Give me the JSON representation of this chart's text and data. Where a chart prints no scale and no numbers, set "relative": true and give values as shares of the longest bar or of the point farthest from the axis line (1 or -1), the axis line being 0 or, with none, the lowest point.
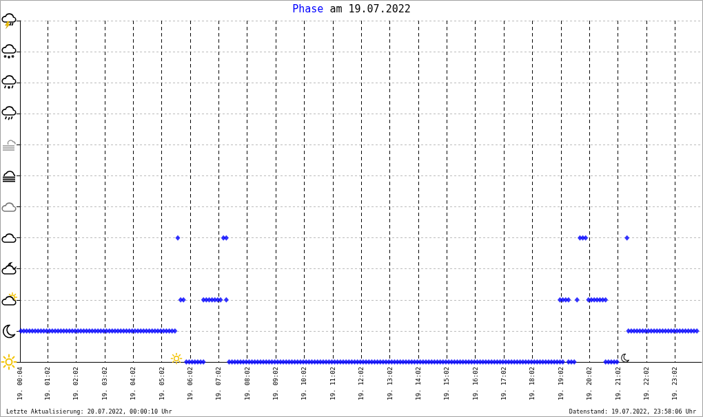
{
  "chart_data": {
    "type": "scatter",
    "title": "Phase am 19.07.2022",
    "color": "#0000ff",
    "marker": "diamond",
    "grid": true,
    "tick_labels": "x",
    "relative": true,
    "x": [
      "2022-07-19T00:06",
      "2022-07-19T00:12",
      "2022-07-19T00:18",
      "2022-07-19T00:24",
      "2022-07-19T00:30",
      "2022-07-19T00:36",
      "2022-07-19T00:42",
      "2022-07-19T00:48",
      "2022-07-19T00:54",
      "2022-07-19T01:00",
      "2022-07-19T01:06",
      "2022-07-19T01:12",
      "2022-07-19T01:18",
      "2022-07-19T01:24",
      "2022-07-19T01:30",
      "2022-07-19T01:36",
      "2022-07-19T01:42",
      "2022-07-19T01:48",
      "2022-07-19T01:54",
      "2022-07-19T02:00",
      "2022-07-19T02:06",
      "2022-07-19T02:12",
      "2022-07-19T02:18",
      "2022-07-19T02:24",
      "2022-07-19T02:30",
      "2022-07-19T02:36",
      "2022-07-19T02:42",
      "2022-07-19T02:48",
      "2022-07-19T02:54",
      "2022-07-19T03:00",
      "2022-07-19T03:06",
      "2022-07-19T03:12",
      "2022-07-19T03:18",
      "2022-07-19T03:24",
      "2022-07-19T03:30",
      "2022-07-19T03:36",
      "2022-07-19T03:42",
      "2022-07-19T03:48",
      "2022-07-19T03:54",
      "2022-07-19T04:00",
      "2022-07-19T04:06",
      "2022-07-19T04:12",
      "2022-07-19T04:18",
      "2022-07-19T04:24",
      "2022-07-19T04:30",
      "2022-07-19T04:36",
      "2022-07-19T04:42",
      "2022-07-19T04:48",
      "2022-07-19T04:54",
      "2022-07-19T05:00",
      "2022-07-19T05:06",
      "2022-07-19T05:12",
      "2022-07-19T05:18",
      "2022-07-19T05:24",
      "2022-07-19T05:30",
      "2022-07-19T05:36",
      "2022-07-19T05:42",
      "2022-07-19T05:48",
      "2022-07-19T05:54",
      "2022-07-19T06:00",
      "2022-07-19T06:06",
      "2022-07-19T06:12",
      "2022-07-19T06:18",
      "2022-07-19T06:24",
      "2022-07-19T06:30",
      "2022-07-19T06:30",
      "2022-07-19T06:36",
      "2022-07-19T06:42",
      "2022-07-19T06:48",
      "2022-07-19T06:54",
      "2022-07-19T07:00",
      "2022-07-19T07:06",
      "2022-07-19T07:18",
      "2022-07-19T07:12",
      "2022-07-19T07:18",
      "2022-07-19T07:24",
      "2022-07-19T07:30",
      "2022-07-19T07:36",
      "2022-07-19T07:42",
      "2022-07-19T07:48",
      "2022-07-19T07:54",
      "2022-07-19T08:00",
      "2022-07-19T08:06",
      "2022-07-19T08:12",
      "2022-07-19T08:18",
      "2022-07-19T08:24",
      "2022-07-19T08:30",
      "2022-07-19T08:36",
      "2022-07-19T08:42",
      "2022-07-19T08:48",
      "2022-07-19T08:54",
      "2022-07-19T09:00",
      "2022-07-19T09:06",
      "2022-07-19T09:12",
      "2022-07-19T09:18",
      "2022-07-19T09:24",
      "2022-07-19T09:30",
      "2022-07-19T09:36",
      "2022-07-19T09:42",
      "2022-07-19T09:48",
      "2022-07-19T09:54",
      "2022-07-19T10:00",
      "2022-07-19T10:06",
      "2022-07-19T10:12",
      "2022-07-19T10:18",
      "2022-07-19T10:24",
      "2022-07-19T10:30",
      "2022-07-19T10:36",
      "2022-07-19T10:42",
      "2022-07-19T10:48",
      "2022-07-19T10:54",
      "2022-07-19T11:00",
      "2022-07-19T11:06",
      "2022-07-19T11:12",
      "2022-07-19T11:18",
      "2022-07-19T11:24",
      "2022-07-19T11:30",
      "2022-07-19T11:36",
      "2022-07-19T11:42",
      "2022-07-19T11:48",
      "2022-07-19T11:54",
      "2022-07-19T12:00",
      "2022-07-19T12:06",
      "2022-07-19T12:12",
      "2022-07-19T12:18",
      "2022-07-19T12:24",
      "2022-07-19T12:30",
      "2022-07-19T12:36",
      "2022-07-19T12:42",
      "2022-07-19T12:48",
      "2022-07-19T12:54",
      "2022-07-19T13:00",
      "2022-07-19T13:06",
      "2022-07-19T13:12",
      "2022-07-19T13:18",
      "2022-07-19T13:24",
      "2022-07-19T13:30",
      "2022-07-19T13:36",
      "2022-07-19T13:42",
      "2022-07-19T13:48",
      "2022-07-19T13:54",
      "2022-07-19T14:00",
      "2022-07-19T14:06",
      "2022-07-19T14:12",
      "2022-07-19T14:18",
      "2022-07-19T14:24",
      "2022-07-19T14:30",
      "2022-07-19T14:36",
      "2022-07-19T14:42",
      "2022-07-19T14:48",
      "2022-07-19T14:54",
      "2022-07-19T15:00",
      "2022-07-19T15:06",
      "2022-07-19T15:12",
      "2022-07-19T15:18",
      "2022-07-19T15:24",
      "2022-07-19T15:30",
      "2022-07-19T15:36",
      "2022-07-19T15:42",
      "2022-07-19T15:48",
      "2022-07-19T15:54",
      "2022-07-19T16:00",
      "2022-07-19T16:06",
      "2022-07-19T16:12",
      "2022-07-19T16:18",
      "2022-07-19T16:24",
      "2022-07-19T16:30",
      "2022-07-19T16:36",
      "2022-07-19T16:42",
      "2022-07-19T16:48",
      "2022-07-19T16:54",
      "2022-07-19T17:00",
      "2022-07-19T17:06",
      "2022-07-19T17:12",
      "2022-07-19T17:18",
      "2022-07-19T17:24",
      "2022-07-19T17:30",
      "2022-07-19T17:36",
      "2022-07-19T17:42",
      "2022-07-19T17:48",
      "2022-07-19T17:54",
      "2022-07-19T18:00",
      "2022-07-19T18:06",
      "2022-07-19T18:12",
      "2022-07-19T18:18",
      "2022-07-19T18:24",
      "2022-07-19T18:30",
      "2022-07-19T18:36",
      "2022-07-19T18:42",
      "2022-07-19T18:48",
      "2022-07-19T18:54",
      "2022-07-19T19:00",
      "2022-07-19T19:06",
      "2022-07-19T19:00",
      "2022-07-19T19:06",
      "2022-07-19T19:12",
      "2022-07-19T19:18",
      "2022-07-19T19:18",
      "2022-07-19T19:24",
      "2022-07-19T19:30",
      "2022-07-19T19:36",
      "2022-07-19T19:42",
      "2022-07-19T19:48",
      "2022-07-19T19:54",
      "2022-07-19T20:00",
      "2022-07-19T20:06",
      "2022-07-19T20:12",
      "2022-07-19T20:18",
      "2022-07-19T20:24",
      "2022-07-19T20:30",
      "2022-07-19T20:36",
      "2022-07-19T20:36",
      "2022-07-19T20:42",
      "2022-07-19T20:48",
      "2022-07-19T20:54",
      "2022-07-19T21:00",
      "2022-07-19T21:21",
      "2022-07-19T21:24",
      "2022-07-19T21:30",
      "2022-07-19T21:36",
      "2022-07-19T21:42",
      "2022-07-19T21:48",
      "2022-07-19T21:54",
      "2022-07-19T22:00",
      "2022-07-19T22:06",
      "2022-07-19T22:12",
      "2022-07-19T22:18",
      "2022-07-19T22:24",
      "2022-07-19T22:30",
      "2022-07-19T22:36",
      "2022-07-19T22:42",
      "2022-07-19T22:48",
      "2022-07-19T22:54",
      "2022-07-19T23:00",
      "2022-07-19T23:06",
      "2022-07-19T23:12",
      "2022-07-19T23:18",
      "2022-07-19T23:24",
      "2022-07-19T23:30",
      "2022-07-19T23:36",
      "2022-07-19T23:42",
      "2022-07-19T23:48"
    ],
    "values": [
      0.25,
      0.25,
      0.25,
      0.25,
      0.25,
      0.25,
      0.25,
      0.25,
      0.25,
      0.25,
      0.25,
      0.25,
      0.25,
      0.25,
      0.25,
      0.25,
      0.25,
      0.25,
      0.25,
      0.25,
      0.25,
      0.25,
      0.25,
      0.25,
      0.25,
      0.25,
      0.25,
      0.25,
      0.25,
      0.25,
      0.25,
      0.25,
      0.25,
      0.25,
      0.25,
      0.25,
      0.25,
      0.25,
      0.25,
      0.25,
      0.25,
      0.25,
      0.25,
      0.25,
      0.25,
      0.25,
      0.25,
      0.25,
      0.25,
      0.25,
      0.25,
      0.25,
      0.25,
      0.25,
      0.25,
      1,
      0.5,
      0.5,
      0,
      0,
      0,
      0,
      0,
      0,
      0,
      0.5,
      0.5,
      0.5,
      0.5,
      0.5,
      0.5,
      0.5,
      0.5,
      1,
      1,
      0,
      0,
      0,
      0,
      0,
      0,
      0,
      0,
      0,
      0,
      0,
      0,
      0,
      0,
      0,
      0,
      0,
      0,
      0,
      0,
      0,
      0,
      0,
      0,
      0,
      0,
      0,
      0,
      0,
      0,
      0,
      0,
      0,
      0,
      0,
      0,
      0,
      0,
      0,
      0,
      0,
      0,
      0,
      0,
      0,
      0,
      0,
      0,
      0,
      0,
      0,
      0,
      0,
      0,
      0,
      0,
      0,
      0,
      0,
      0,
      0,
      0,
      0,
      0,
      0,
      0,
      0,
      0,
      0,
      0,
      0,
      0,
      0,
      0,
      0,
      0,
      0,
      0,
      0,
      0,
      0,
      0,
      0,
      0,
      0,
      0,
      0,
      0,
      0,
      0,
      0,
      0,
      0,
      0,
      0,
      0,
      0,
      0,
      0,
      0,
      0,
      0,
      0,
      0,
      0,
      0,
      0,
      0,
      0,
      0,
      0,
      0,
      0,
      0,
      0,
      0,
      0,
      0,
      0.5,
      0.5,
      0.5,
      0.5,
      0,
      0,
      0,
      0.5,
      1,
      1,
      1,
      0.5,
      0.5,
      0.5,
      0.5,
      0.5,
      0.5,
      0.5,
      0,
      0,
      0,
      0,
      0,
      1,
      0.25,
      0.25,
      0.25,
      0.25,
      0.25,
      0.25,
      0.25,
      0.25,
      0.25,
      0.25,
      0.25,
      0.25,
      0.25,
      0.25,
      0.25,
      0.25,
      0.25,
      0.25,
      0.25,
      0.25,
      0.25,
      0.25,
      0.25,
      0.25,
      0.25
    ],
    "xlim": [
      "2022-07-19T00:04",
      "2022-07-19T23:58"
    ],
    "xticks": [
      {
        "value": "2022-07-19T00:04",
        "label": "19. 00:04"
      },
      {
        "value": "2022-07-19T01:02",
        "label": "19. 01:02"
      },
      {
        "value": "2022-07-19T02:02",
        "label": "19. 02:02"
      },
      {
        "value": "2022-07-19T03:02",
        "label": "19. 03:02"
      },
      {
        "value": "2022-07-19T04:02",
        "label": "19. 04:02"
      },
      {
        "value": "2022-07-19T05:02",
        "label": "19. 05:02"
      },
      {
        "value": "2022-07-19T06:02",
        "label": "19. 06:02"
      },
      {
        "value": "2022-07-19T07:02",
        "label": "19. 07:02"
      },
      {
        "value": "2022-07-19T08:02",
        "label": "19. 08:02"
      },
      {
        "value": "2022-07-19T09:02",
        "label": "19. 09:02"
      },
      {
        "value": "2022-07-19T10:02",
        "label": "19. 10:02"
      },
      {
        "value": "2022-07-19T11:02",
        "label": "19. 11:02"
      },
      {
        "value": "2022-07-19T12:02",
        "label": "19. 12:02"
      },
      {
        "value": "2022-07-19T13:02",
        "label": "19. 13:02"
      },
      {
        "value": "2022-07-19T14:02",
        "label": "19. 14:02"
      },
      {
        "value": "2022-07-19T15:02",
        "label": "19. 15:02"
      },
      {
        "value": "2022-07-19T16:02",
        "label": "19. 16:02"
      },
      {
        "value": "2022-07-19T17:02",
        "label": "19. 17:02"
      },
      {
        "value": "2022-07-19T18:02",
        "label": "19. 18:02"
      },
      {
        "value": "2022-07-19T19:02",
        "label": "19. 19:02"
      },
      {
        "value": "2022-07-19T20:02",
        "label": "19. 20:02"
      },
      {
        "value": "2022-07-19T21:02",
        "label": "19. 21:02"
      },
      {
        "value": "2022-07-19T22:02",
        "label": "19. 22:02"
      },
      {
        "value": "2022-07-19T23:02",
        "label": "19. 23:02"
      }
    ],
    "annotations": [
      "Letzte Aktualisierung: 20.07.2022, 00:00:10 Uhr",
      "Datenstand: 19.07.2022, 23:58:06 Uhr"
    ]
  }
}
